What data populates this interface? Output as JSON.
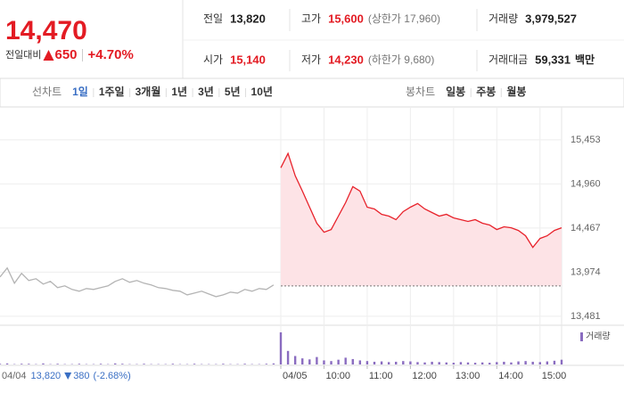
{
  "header": {
    "price": "14,470",
    "change_label": "전일대비",
    "change": "650",
    "change_rate": "+4.70%",
    "stats": [
      [
        {
          "label": "전일",
          "value": "13,820",
          "color": "#222222"
        },
        {
          "label": "고가",
          "value": "15,600",
          "note": "(상한가 17,960)",
          "color": "#e31b23"
        },
        {
          "label": "거래량",
          "value": "3,979,527",
          "color": "#222222"
        }
      ],
      [
        {
          "label": "시가",
          "value": "15,140",
          "color": "#e31b23"
        },
        {
          "label": "저가",
          "value": "14,230",
          "note": "(하한가 9,680)",
          "color": "#e31b23"
        },
        {
          "label": "거래대금",
          "value": "59,331",
          "unit": "백만",
          "color": "#222222"
        }
      ]
    ]
  },
  "tabs": {
    "line_label": "선차트",
    "line": [
      "1일",
      "1주일",
      "3개월",
      "1년",
      "3년",
      "5년",
      "10년"
    ],
    "active": 0,
    "candle_label": "봉차트",
    "candle": [
      "일봉",
      "주봉",
      "월봉"
    ]
  },
  "chart_data": {
    "type": "line",
    "categories": [
      null,
      null,
      null,
      null,
      null,
      null,
      null,
      null,
      null,
      null,
      null,
      null,
      null,
      null,
      null,
      null,
      null,
      null,
      null,
      null,
      null,
      null,
      null,
      null,
      null,
      null,
      null,
      null,
      null,
      null,
      null,
      null,
      null,
      null,
      null,
      null,
      null,
      null,
      null,
      "04/05",
      null,
      null,
      null,
      null,
      null,
      "10:00",
      null,
      null,
      null,
      null,
      null,
      "11:00",
      null,
      null,
      null,
      null,
      null,
      "12:00",
      null,
      null,
      null,
      null,
      null,
      "13:00",
      null,
      null,
      null,
      null,
      null,
      "14:00",
      null,
      null,
      null,
      null,
      null,
      "15:00",
      null,
      null,
      null
    ],
    "series": [
      {
        "color": "#b4b4b4",
        "values": [
          13920,
          14020,
          13850,
          13960,
          13880,
          13900,
          13840,
          13870,
          13800,
          13820,
          13780,
          13760,
          13790,
          13780,
          13800,
          13820,
          13870,
          13900,
          13860,
          13880,
          13850,
          13830,
          13800,
          13790,
          13770,
          13760,
          13720,
          13740,
          13760,
          13730,
          13700,
          13720,
          13750,
          13740,
          13780,
          13760,
          13790,
          13780,
          13830,
          null,
          null,
          null,
          null,
          null,
          null,
          null,
          null,
          null,
          null,
          null,
          null,
          null,
          null,
          null,
          null,
          null,
          null,
          null,
          null,
          null,
          null,
          null,
          null,
          null,
          null,
          null,
          null,
          null,
          null,
          null,
          null,
          null,
          null,
          null,
          null,
          null,
          null,
          null,
          null
        ]
      },
      {
        "color": "#e8222b",
        "fill": "#fde3e6",
        "values": [
          null,
          null,
          null,
          null,
          null,
          null,
          null,
          null,
          null,
          null,
          null,
          null,
          null,
          null,
          null,
          null,
          null,
          null,
          null,
          null,
          null,
          null,
          null,
          null,
          null,
          null,
          null,
          null,
          null,
          null,
          null,
          null,
          null,
          null,
          null,
          null,
          null,
          null,
          null,
          15140,
          15300,
          15050,
          14880,
          14700,
          14520,
          14420,
          14450,
          14600,
          14750,
          14930,
          14880,
          14700,
          14680,
          14620,
          14600,
          14560,
          14650,
          14700,
          14740,
          14680,
          14640,
          14600,
          14620,
          14580,
          14560,
          14540,
          14560,
          14520,
          14500,
          14450,
          14480,
          14470,
          14440,
          14380,
          14250,
          14350,
          14380,
          14440,
          14470
        ]
      }
    ],
    "reference": 13820,
    "ylim": [
      13380,
      15820
    ],
    "yticks": [
      {
        "value": 13481,
        "label": "13,481"
      },
      {
        "value": 13974,
        "label": "13,974"
      },
      {
        "value": 14467,
        "label": "14,467"
      },
      {
        "value": 14960,
        "label": "14,960"
      },
      {
        "value": 15453,
        "label": "15,453"
      }
    ],
    "grid": true,
    "volume": {
      "name": "거래량",
      "color": "#8a6cc0",
      "ylim": [
        0,
        100
      ],
      "values": [
        2,
        3,
        1,
        2,
        2,
        1,
        3,
        1,
        2,
        1,
        1,
        2,
        1,
        1,
        2,
        1,
        3,
        2,
        1,
        1,
        2,
        1,
        1,
        1,
        2,
        1,
        1,
        2,
        1,
        1,
        1,
        2,
        1,
        1,
        2,
        1,
        1,
        2,
        3,
        95,
        40,
        25,
        18,
        15,
        22,
        12,
        10,
        14,
        20,
        16,
        12,
        10,
        8,
        9,
        7,
        8,
        10,
        9,
        7,
        6,
        8,
        7,
        6,
        5,
        7,
        6,
        5,
        6,
        5,
        7,
        8,
        6,
        9,
        10,
        8,
        7,
        9,
        11,
        14
      ]
    }
  },
  "footer": {
    "date": "04/04",
    "price": "13,820",
    "change": "380",
    "change_rate": "(-2.68%)"
  }
}
